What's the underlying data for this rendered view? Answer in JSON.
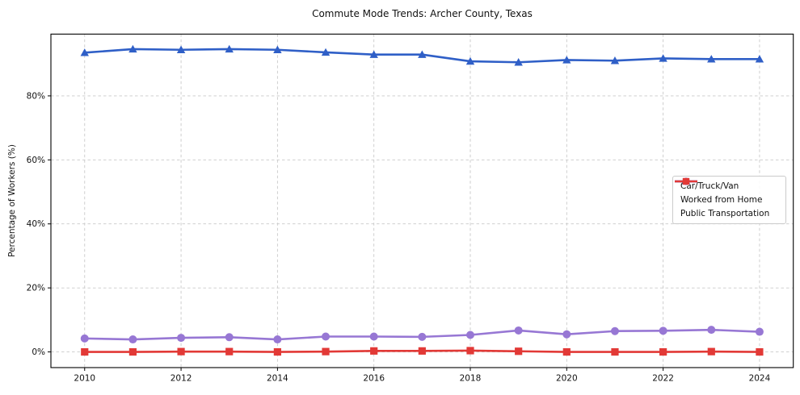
{
  "chart_data": {
    "type": "line",
    "title": "Commute Mode Trends: Archer County, Texas",
    "xlabel": "",
    "ylabel": "Percentage of Workers (%)",
    "x": [
      2010,
      2011,
      2012,
      2013,
      2014,
      2015,
      2016,
      2017,
      2018,
      2019,
      2020,
      2021,
      2022,
      2023,
      2024
    ],
    "series": [
      {
        "name": "Car/Truck/Van",
        "color": "#2f5fc7",
        "marker": "triangle",
        "values": [
          93.5,
          94.6,
          94.4,
          94.6,
          94.4,
          93.6,
          92.9,
          92.9,
          90.8,
          90.5,
          91.2,
          91.0,
          91.7,
          91.5,
          91.5
        ]
      },
      {
        "name": "Worked from Home",
        "color": "#9777d4",
        "marker": "circle",
        "values": [
          4.2,
          3.9,
          4.4,
          4.6,
          3.9,
          4.8,
          4.8,
          4.7,
          5.3,
          6.7,
          5.5,
          6.5,
          6.6,
          6.9,
          6.3
        ]
      },
      {
        "name": "Public Transportation",
        "color": "#e23936",
        "marker": "square",
        "values": [
          0.0,
          0.0,
          0.1,
          0.1,
          0.0,
          0.1,
          0.3,
          0.3,
          0.4,
          0.2,
          0.0,
          0.0,
          0.0,
          0.1,
          0.0
        ]
      }
    ],
    "x_ticks": {
      "values": [
        2010,
        2012,
        2014,
        2016,
        2018,
        2020,
        2022,
        2024
      ],
      "labels": [
        "2010",
        "2012",
        "2014",
        "2016",
        "2018",
        "2020",
        "2022",
        "2024"
      ]
    },
    "y_ticks": {
      "values": [
        0,
        20,
        40,
        60,
        80
      ],
      "labels": [
        "0%",
        "20%",
        "40%",
        "60%",
        "80%"
      ]
    },
    "xlim": [
      2009.3,
      2024.7
    ],
    "ylim": [
      -4.9,
      99.3
    ],
    "grid": true,
    "grid_style": "dashed",
    "legend_position": "center-right",
    "colors": {
      "spine": "#000000",
      "gridline": "#c9c9c9",
      "text": "#111111"
    }
  }
}
